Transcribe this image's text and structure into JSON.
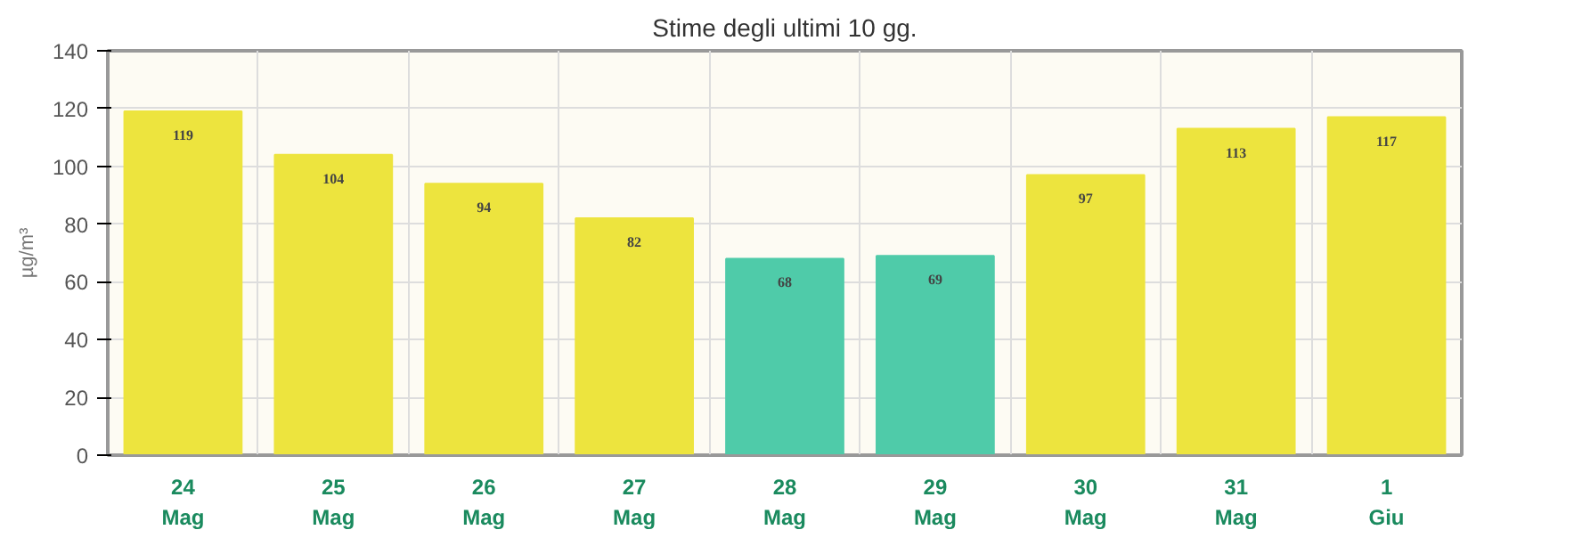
{
  "chart_data": {
    "type": "bar",
    "title": "Stime degli ultimi 10 gg.",
    "ylabel": "µg/m³",
    "categories": [
      "24\nMag",
      "25\nMag",
      "26\nMag",
      "27\nMag",
      "28\nMag",
      "29\nMag",
      "30\nMag",
      "31\nMag",
      "1\nGiu"
    ],
    "values": [
      119,
      104,
      94,
      82,
      68,
      69,
      97,
      113,
      117
    ],
    "colors": [
      "#ede43e",
      "#ede43e",
      "#ede43e",
      "#ede43e",
      "#4fcba9",
      "#4fcba9",
      "#ede43e",
      "#ede43e",
      "#ede43e"
    ],
    "ylim": [
      0,
      140
    ],
    "yticks": [
      0,
      20,
      40,
      60,
      80,
      100,
      120,
      140
    ],
    "grid": true,
    "data_labels": true
  }
}
